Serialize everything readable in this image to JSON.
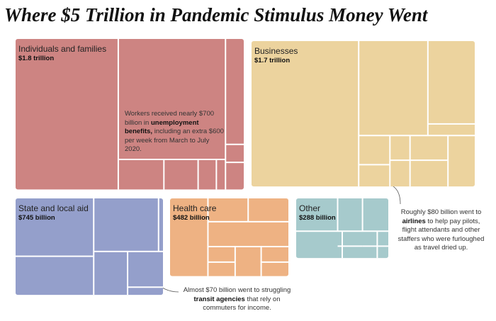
{
  "chart_data": {
    "type": "treemap",
    "title": "Where $5 Trillion in Pandemic Stimulus Money Went",
    "categories": [
      "Individuals and families",
      "Businesses",
      "State and local aid",
      "Health care",
      "Other"
    ],
    "values": [
      1800,
      1700,
      745,
      482,
      288
    ],
    "value_labels": [
      "$1.8 trillion",
      "$1.7 trillion",
      "$745 billion",
      "$482 billion",
      "$288 billion"
    ],
    "colors": [
      "#cd8482",
      "#ecd39e",
      "#949fcb",
      "#eeb283",
      "#a6cacc"
    ],
    "annotations": [
      {
        "text_before": "Workers received nearly $700 billion in ",
        "bold": "unemployment benefits,",
        "text_after": " including an extra $600 per week from March to July 2020."
      },
      {
        "text_before": "Roughly $80 billion went to ",
        "bold": "airlines",
        "text_after": " to help pay pilots, flight attendants and other staffers who were furloughed as travel dried up."
      },
      {
        "text_before": "Almost $70 billion went to struggling ",
        "bold": "transit agencies",
        "text_after": " that rely on commuters for income."
      }
    ]
  }
}
